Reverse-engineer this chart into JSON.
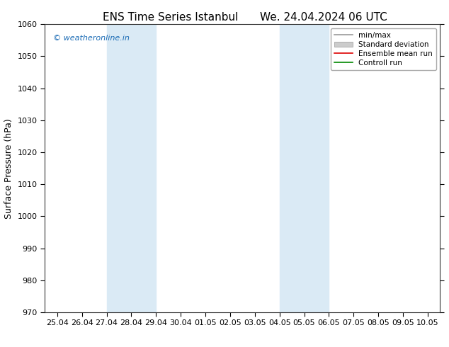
{
  "title_left": "ENS Time Series Istanbul",
  "title_right": "We. 24.04.2024 06 UTC",
  "ylabel": "Surface Pressure (hPa)",
  "ylim": [
    970,
    1060
  ],
  "yticks": [
    970,
    980,
    990,
    1000,
    1010,
    1020,
    1030,
    1040,
    1050,
    1060
  ],
  "x_tick_labels": [
    "25.04",
    "26.04",
    "27.04",
    "28.04",
    "29.04",
    "30.04",
    "01.05",
    "02.05",
    "03.05",
    "04.05",
    "05.05",
    "06.05",
    "07.05",
    "08.05",
    "09.05",
    "10.05"
  ],
  "x_tick_values": [
    0,
    1,
    2,
    3,
    4,
    5,
    6,
    7,
    8,
    9,
    10,
    11,
    12,
    13,
    14,
    15
  ],
  "xlim": [
    -0.5,
    15.5
  ],
  "shaded_bands": [
    {
      "x_start": 2,
      "x_end": 4,
      "color": "#daeaf5"
    },
    {
      "x_start": 9,
      "x_end": 11,
      "color": "#daeaf5"
    }
  ],
  "legend_entries": [
    {
      "label": "min/max",
      "type": "line",
      "color": "#999999",
      "lw": 1.2
    },
    {
      "label": "Standard deviation",
      "type": "patch",
      "color": "#cccccc"
    },
    {
      "label": "Ensemble mean run",
      "type": "line",
      "color": "#dd0000",
      "lw": 1.2
    },
    {
      "label": "Controll run",
      "type": "line",
      "color": "#008800",
      "lw": 1.2
    }
  ],
  "watermark": "© weatheronline.in",
  "watermark_color": "#1a6bb5",
  "background_color": "#ffffff",
  "plot_bg_color": "#ffffff",
  "border_color": "#333333",
  "title_fontsize": 11,
  "tick_fontsize": 8,
  "ylabel_fontsize": 9,
  "legend_fontsize": 7.5
}
